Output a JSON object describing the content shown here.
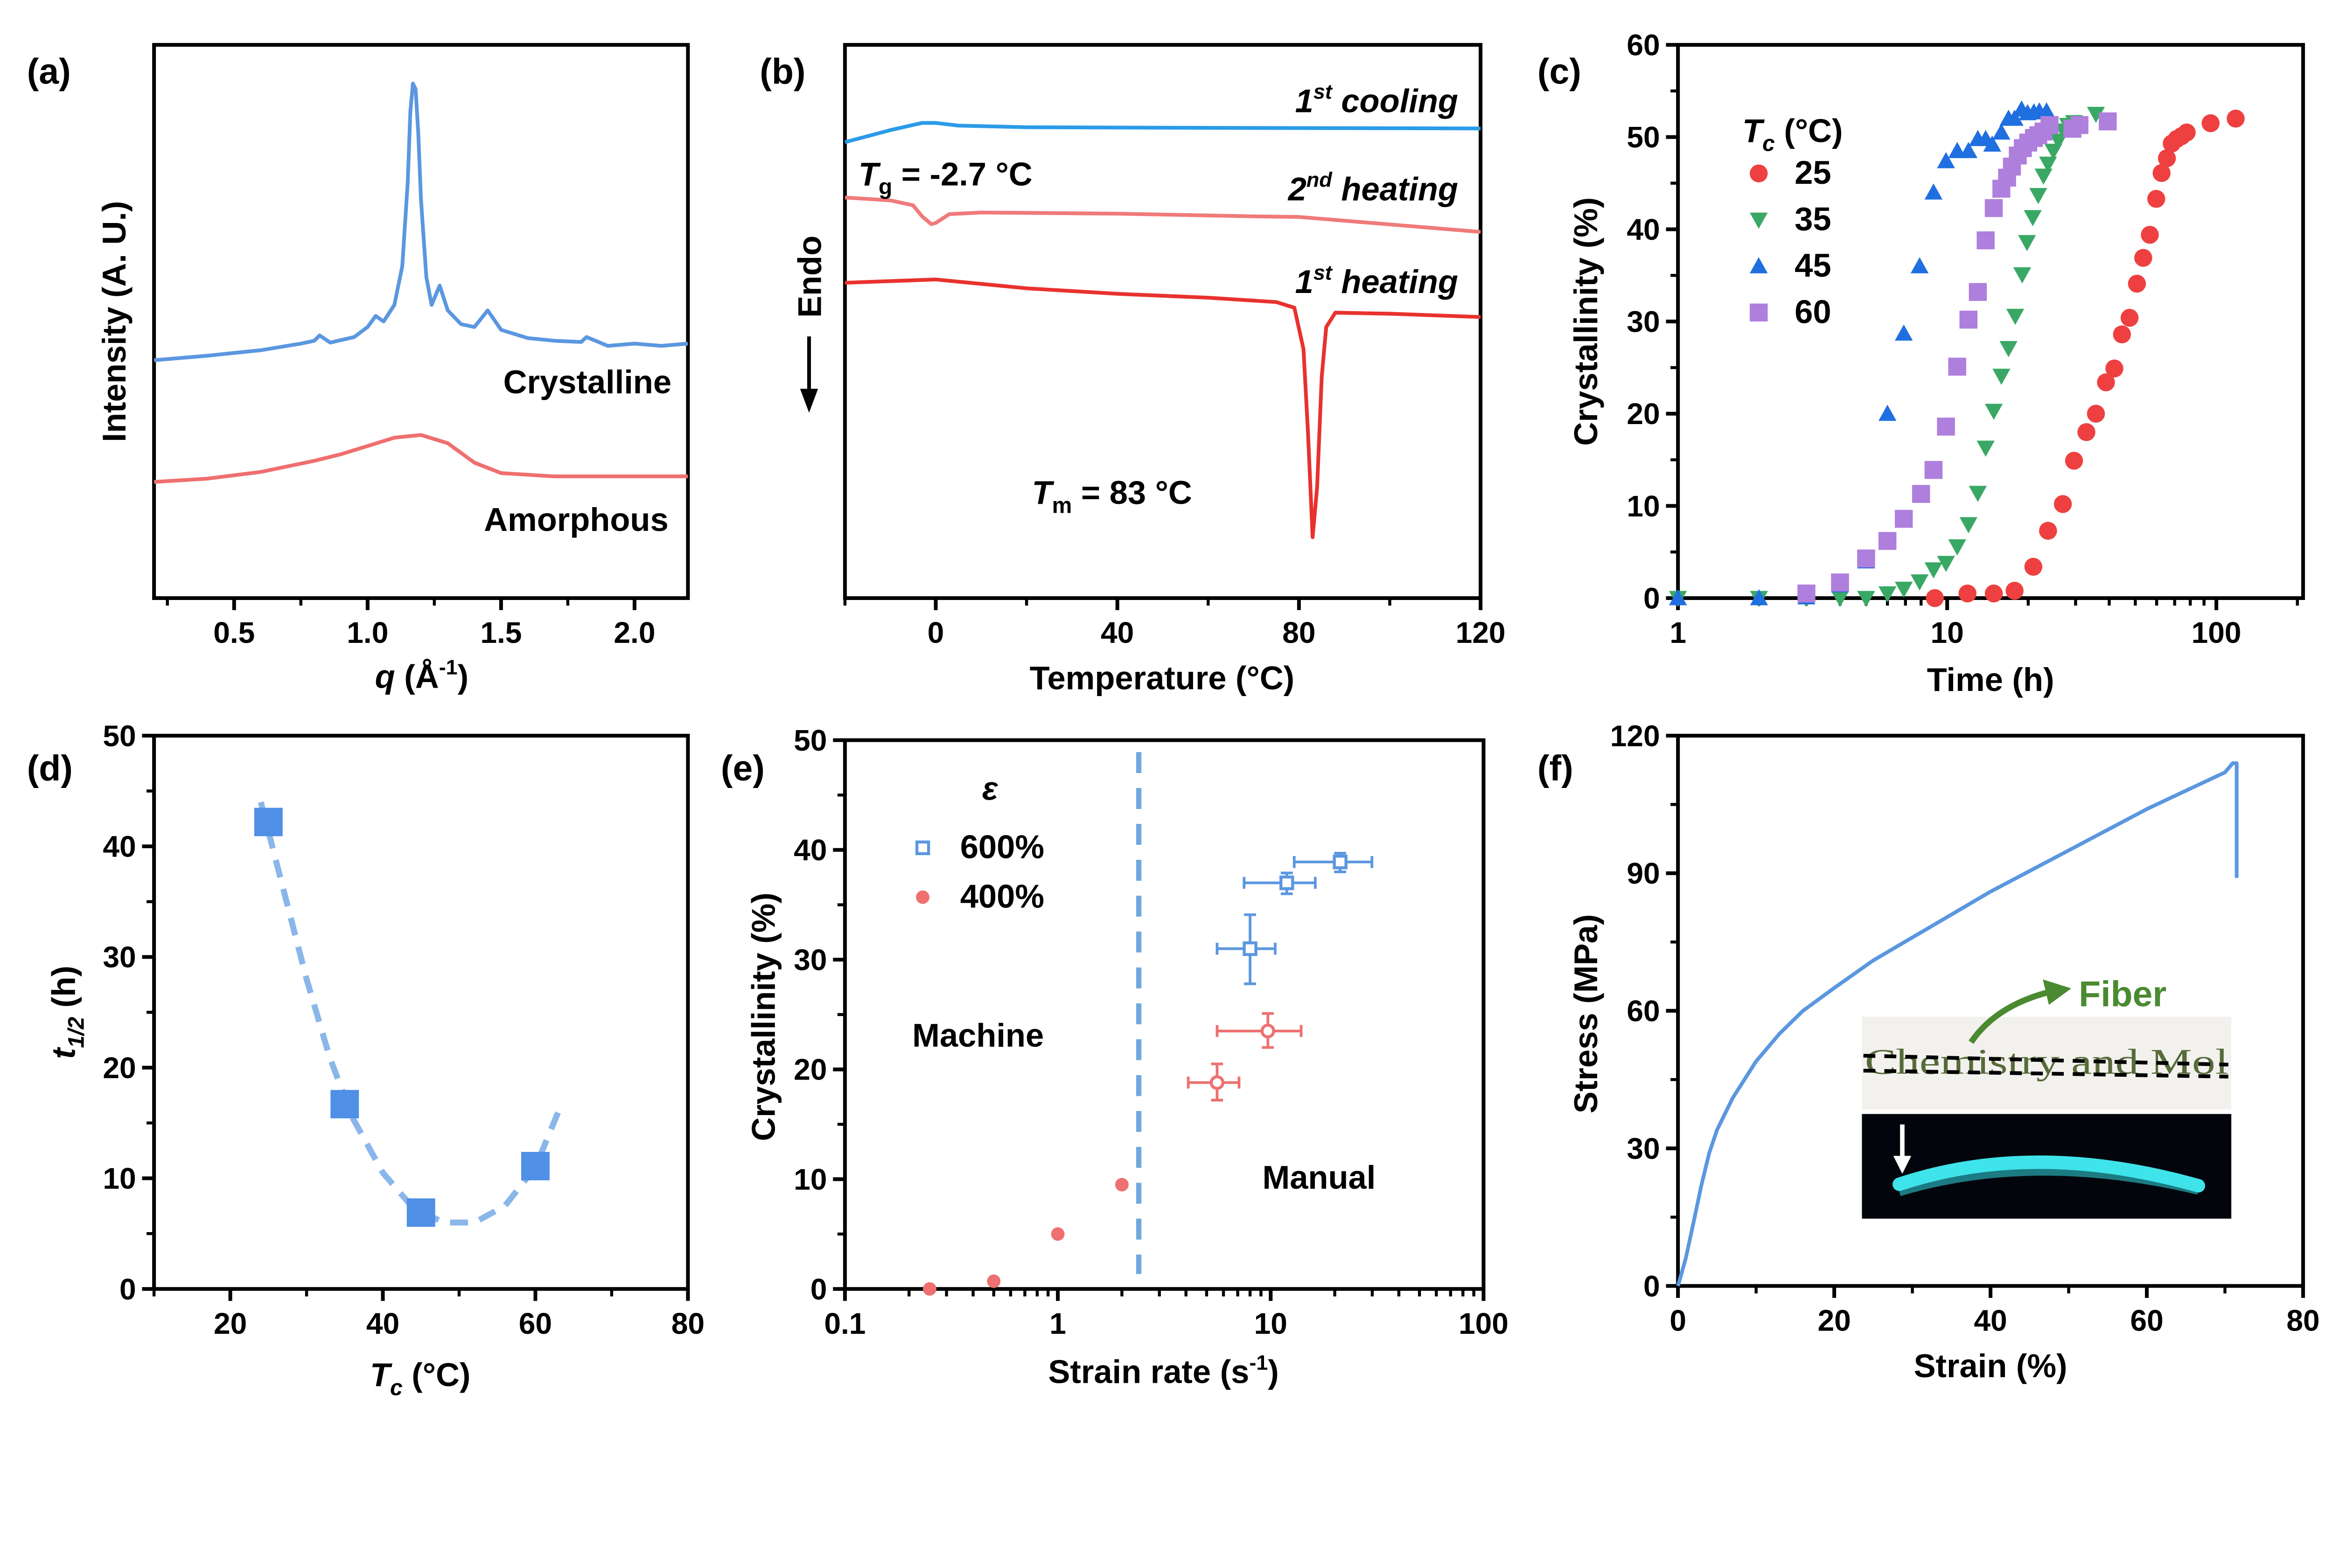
{
  "colors": {
    "crystalline": "#5b97e0",
    "amorphous": "#ef6f6f",
    "cooling": "#2b9be8",
    "second_heating": "#f07a7a",
    "first_heating": "#e8322e",
    "tc25": "#ee4040",
    "tc35": "#3aa865",
    "tc45": "#1f6fe0",
    "tc60": "#ae7fdc",
    "d_markers": "#4f8fe6",
    "d_fit": "#8ab6ea",
    "e_600": "#5b97e0",
    "e_400": "#ee7070",
    "e_divider": "#6fa8dc",
    "f_curve": "#5b97e0",
    "fiber_label": "#4a8a30",
    "fiber_glow": "#3fe3ea"
  },
  "chart_data": [
    {
      "panel_label": "(a)",
      "type": "line",
      "xlabel": {
        "main": "q",
        "rest": " (Å",
        "sup": "-1",
        "close": ")"
      },
      "ylabel": "Intensity (A. U.)",
      "xlim": [
        0.2,
        2.2
      ],
      "ylim": [
        0,
        100
      ],
      "xticks": [
        0.5,
        1.0,
        1.5,
        2.0
      ],
      "xtick_labels": [
        "0.5",
        "1.0",
        "1.5",
        "2.0"
      ],
      "yticks": [],
      "series": [
        {
          "name": "Crystalline",
          "x": [
            0.2,
            0.4,
            0.6,
            0.75,
            0.8,
            0.82,
            0.86,
            0.95,
            1.0,
            1.03,
            1.06,
            1.1,
            1.13,
            1.15,
            1.16,
            1.17,
            1.18,
            1.19,
            1.2,
            1.22,
            1.24,
            1.27,
            1.3,
            1.35,
            1.4,
            1.45,
            1.5,
            1.6,
            1.7,
            1.8,
            1.82,
            1.9,
            2.0,
            2.1,
            2.2
          ],
          "y": [
            43,
            43.8,
            44.8,
            46,
            46.5,
            47.5,
            46.2,
            47.2,
            49,
            51,
            50,
            53,
            60,
            75,
            88,
            93,
            92,
            84,
            72,
            58,
            53,
            56.5,
            52,
            49.5,
            49,
            52,
            48.5,
            47,
            46.5,
            46.3,
            47.2,
            45.6,
            46,
            45.6,
            46
          ]
        },
        {
          "name": "Amorphous",
          "x": [
            0.2,
            0.4,
            0.6,
            0.8,
            0.9,
            1.0,
            1.1,
            1.2,
            1.3,
            1.4,
            1.5,
            1.7,
            2.0,
            2.2
          ],
          "y": [
            21,
            21.6,
            22.8,
            24.8,
            26,
            27.5,
            29,
            29.5,
            28,
            24.5,
            22.6,
            22,
            22,
            22
          ]
        }
      ]
    },
    {
      "panel_label": "(b)",
      "type": "line",
      "xlabel": "Temperature (°C)",
      "ylabel": "Endo",
      "xlim": [
        -20,
        120
      ],
      "ylim": [
        0,
        100
      ],
      "xticks": [
        0,
        40,
        80,
        120
      ],
      "xtick_labels": [
        "0",
        "40",
        "80",
        "120"
      ],
      "yticks": [],
      "series": [
        {
          "name": "1st cooling",
          "label": {
            "num": "1",
            "sup": "st",
            "text": " cooling"
          },
          "x": [
            -20,
            -10,
            -3,
            0,
            5,
            20,
            60,
            120
          ],
          "y": [
            82.4,
            84.6,
            85.9,
            85.9,
            85.4,
            85.1,
            85,
            84.9
          ]
        },
        {
          "name": "2nd heating",
          "label": {
            "num": "2",
            "sup": "nd",
            "text": " heating"
          },
          "x": [
            -20,
            -10,
            -5,
            -3,
            -1,
            0,
            3,
            10,
            40,
            70,
            80,
            120
          ],
          "y": [
            72.4,
            71.9,
            71,
            69,
            67.6,
            67.8,
            69.4,
            69.7,
            69.5,
            69,
            68.9,
            66.2
          ]
        },
        {
          "name": "1st heating",
          "label": {
            "num": "1",
            "sup": "st",
            "text": " heating"
          },
          "x": [
            -20,
            0,
            20,
            40,
            60,
            75,
            79,
            81,
            82,
            83,
            84,
            85,
            86,
            88,
            100,
            120
          ],
          "y": [
            57,
            57.6,
            56,
            55,
            54.3,
            53.5,
            52.5,
            45,
            30,
            11,
            20,
            40,
            49,
            51.6,
            51.4,
            50.8
          ]
        }
      ],
      "annotations": {
        "tg": {
          "main": "T",
          "sub": "g",
          "rest": " = -2.7 °C"
        },
        "tm": {
          "main": "T",
          "sub": "m",
          "rest": " = 83 °C"
        }
      }
    },
    {
      "panel_label": "(c)",
      "type": "scatter",
      "xlabel": "Time (h)",
      "ylabel": "Crystallinity (%)",
      "xscale": "log",
      "xlim": [
        1,
        210
      ],
      "ylim": [
        0,
        60
      ],
      "xticks": [
        1,
        10,
        100
      ],
      "xtick_labels": [
        "1",
        "10",
        "100"
      ],
      "yticks": [
        0,
        10,
        20,
        30,
        40,
        50,
        60
      ],
      "ytick_labels": [
        "0",
        "10",
        "20",
        "30",
        "40",
        "50",
        "60"
      ],
      "legend_title": {
        "main": "T",
        "sub": "c",
        "rest": " (°C)"
      },
      "legend_placement": "top-left",
      "series": [
        {
          "name": "25",
          "marker": "circle",
          "x": [
            9.0,
            11.9,
            14.9,
            17.8,
            20.9,
            23.7,
            26.9,
            29.6,
            32.9,
            35.7,
            38.9,
            41.8,
            44.6,
            47.6,
            50.7,
            53.5,
            56.6,
            59.8,
            62.6,
            65.5,
            68.3,
            71.3,
            74.3,
            77.6,
            95.2,
            118
          ],
          "y": [
            0,
            0.5,
            0.5,
            0.8,
            3.4,
            7.3,
            10.2,
            14.9,
            18,
            20,
            23.4,
            24.9,
            28.6,
            30.4,
            34.1,
            36.9,
            39.4,
            43.3,
            46.1,
            47.7,
            49.3,
            49.8,
            50.1,
            50.5,
            51.5,
            52
          ]
        },
        {
          "name": "35",
          "marker": "triangle-down",
          "x": [
            1,
            2,
            3,
            4,
            5,
            6,
            6.9,
            7.9,
            8.9,
            9.9,
            10.9,
            12,
            13,
            13.9,
            14.9,
            15.9,
            16.9,
            17.9,
            19,
            19.8,
            20.8,
            21.8,
            22.8,
            23.7,
            24.8,
            25.9,
            27,
            28.1,
            29.6,
            35.7
          ],
          "y": [
            0,
            0,
            0,
            0,
            0,
            0.5,
            1,
            1.8,
            3.1,
            3.8,
            5.6,
            8,
            11.4,
            16.3,
            20.3,
            24.1,
            27.1,
            30.6,
            35.1,
            38.6,
            41.3,
            43.7,
            45.8,
            47.1,
            48.5,
            49.6,
            50.7,
            51.3,
            51.6,
            52.5
          ]
        },
        {
          "name": "45",
          "marker": "triangle-up",
          "x": [
            1,
            2,
            3,
            4,
            5,
            6,
            6.9,
            7.9,
            8.9,
            9.9,
            10.9,
            12,
            13,
            13.9,
            14.7,
            15.9,
            16.9,
            17.8,
            18.9,
            19.9,
            21,
            22,
            23.4
          ],
          "y": [
            0,
            0,
            0.1,
            1.4,
            4,
            20,
            28.7,
            36,
            44,
            47.4,
            48.5,
            48.5,
            49.8,
            49.8,
            49.2,
            50.5,
            52,
            52,
            53,
            52.6,
            52.7,
            52.8,
            52.8
          ]
        },
        {
          "name": "60",
          "marker": "square",
          "x": [
            3,
            4,
            5,
            6,
            6.9,
            8,
            8.9,
            9.9,
            10.9,
            12,
            13,
            13.9,
            14.9,
            15.9,
            16.7,
            17.4,
            18.3,
            19.1,
            20,
            21,
            21.8,
            22.8,
            24,
            29.2,
            31,
            39.5
          ],
          "y": [
            0.5,
            1.7,
            4.3,
            6.2,
            8.6,
            11.3,
            13.9,
            18.6,
            25.1,
            30.2,
            33.2,
            38.8,
            42.3,
            44.4,
            45.6,
            46.8,
            48,
            48.8,
            49.4,
            49.9,
            50.2,
            50.6,
            51.3,
            50.9,
            51.3,
            51.7
          ]
        }
      ]
    },
    {
      "panel_label": "(d)",
      "type": "scatter",
      "xlabel": {
        "main": "T",
        "sub": "c",
        "rest": " (°C)"
      },
      "ylabel": {
        "main": "t",
        "sub": "1/2",
        "rest": " (h)"
      },
      "xlim": [
        10,
        80
      ],
      "ylim": [
        0,
        50
      ],
      "xticks": [
        20,
        40,
        60,
        80
      ],
      "xtick_labels": [
        "20",
        "40",
        "60",
        "80"
      ],
      "yticks": [
        0,
        10,
        20,
        30,
        40,
        50
      ],
      "ytick_labels": [
        "0",
        "10",
        "20",
        "30",
        "40",
        "50"
      ],
      "series": [
        {
          "marker": "square",
          "x": [
            25,
            35,
            45,
            60
          ],
          "y": [
            42.2,
            16.7,
            6.9,
            11.1
          ]
        },
        {
          "line": "dashed",
          "x": [
            24,
            27,
            30,
            33,
            36,
            40,
            44,
            48,
            52,
            56,
            60,
            63
          ],
          "y": [
            44,
            36,
            28,
            21,
            15.5,
            10.5,
            7.3,
            6,
            6,
            7.5,
            11,
            16
          ]
        }
      ]
    },
    {
      "panel_label": "(e)",
      "type": "scatter",
      "xlabel": {
        "main": "Strain rate (s",
        "sup": "-1",
        "close": ")"
      },
      "ylabel": "Crystallinity (%)",
      "xscale": "log",
      "xlim": [
        0.1,
        100
      ],
      "ylim": [
        0,
        50
      ],
      "xticks": [
        0.1,
        1,
        10,
        100
      ],
      "xtick_labels": [
        "0.1",
        "1",
        "10",
        "100"
      ],
      "yticks": [
        0,
        10,
        20,
        30,
        40,
        50
      ],
      "ytick_labels": [
        "0",
        "10",
        "20",
        "30",
        "40",
        "50"
      ],
      "legend_title": "ε",
      "legend_placement": "top-left",
      "divider_x": 2.4,
      "regions": {
        "left": "Machine",
        "right": "Manual"
      },
      "series": [
        {
          "name": "600%",
          "marker": "open-square",
          "x": [
            8.0,
            11.9,
            21.2
          ],
          "y": [
            31.0,
            37.0,
            38.9
          ],
          "xerr_low": [
            5.6,
            7.5,
            12.9
          ],
          "xerr_high": [
            10.5,
            16.2,
            29.9
          ],
          "yerr_low": [
            27.8,
            36.0,
            38.0
          ],
          "yerr_high": [
            34.1,
            37.9,
            39.7
          ]
        },
        {
          "name": "400%",
          "marker": "circle",
          "x": [
            0.25,
            0.5,
            1,
            2
          ],
          "y": [
            0,
            0.7,
            5.0,
            9.5
          ]
        },
        {
          "marker": "open-circle",
          "x": [
            5.6,
            9.7
          ],
          "y": [
            18.8,
            23.5
          ],
          "xerr_low": [
            4.1,
            5.6
          ],
          "xerr_high": [
            7.1,
            13.9
          ],
          "yerr_low": [
            17.2,
            22.0
          ],
          "yerr_high": [
            20.5,
            25.1
          ]
        }
      ]
    },
    {
      "panel_label": "(f)",
      "type": "line",
      "xlabel": "Strain (%)",
      "ylabel": "Stress (MPa)",
      "xlim": [
        0,
        80
      ],
      "ylim": [
        0,
        120
      ],
      "xticks": [
        0,
        20,
        40,
        60,
        80
      ],
      "xtick_labels": [
        "0",
        "20",
        "40",
        "60",
        "80"
      ],
      "yticks": [
        0,
        30,
        60,
        90,
        120
      ],
      "ytick_labels": [
        "0",
        "30",
        "60",
        "90",
        "120"
      ],
      "series": [
        {
          "x": [
            0,
            1,
            2,
            3,
            4,
            5,
            7,
            10,
            13,
            16,
            20,
            25,
            30,
            40,
            50,
            60,
            65,
            70,
            71,
            71.5,
            71.5
          ],
          "y": [
            0,
            6,
            14,
            22,
            29,
            34,
            41,
            49,
            55,
            60,
            65,
            71,
            76,
            86,
            95,
            104,
            108,
            112,
            114,
            114,
            89
          ]
        }
      ],
      "inset": {
        "label": "Fiber",
        "photo_text": "Chemistry and Mol"
      }
    }
  ]
}
